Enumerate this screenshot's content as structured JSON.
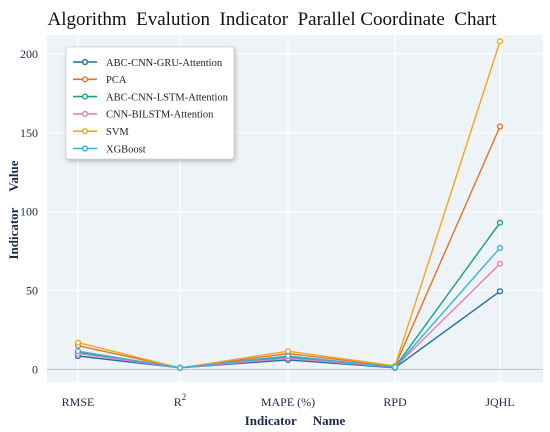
{
  "chart_data": {
    "type": "line",
    "title": "Algorithm  Evalution  Indicator  Parallel Coordinate  Chart",
    "xlabel": "Indicator     Name",
    "ylabel": "Indicator     Value",
    "categories": [
      "RMSE",
      "R",
      "MAPE (%)",
      "RPD",
      "JQHL"
    ],
    "category_superscripts": [
      "",
      "2",
      "",
      "",
      ""
    ],
    "yticks": [
      0,
      50,
      100,
      150,
      200
    ],
    "ylim": [
      -8,
      212
    ],
    "grid": true,
    "legend_position": "top-left",
    "background": "#eef3f7",
    "series": [
      {
        "name": "ABC-CNN-GRU-Attention",
        "color": "#1f6fa3",
        "values": [
          8.5,
          0.99,
          6.0,
          1.0,
          49.5
        ]
      },
      {
        "name": "PCA",
        "color": "#e0742a",
        "values": [
          15.0,
          0.96,
          10.0,
          2.0,
          154.0
        ]
      },
      {
        "name": "ABC-CNN-LSTM-Attention",
        "color": "#13a085",
        "values": [
          11.0,
          0.98,
          8.0,
          1.5,
          93.0
        ]
      },
      {
        "name": "CNN-BILSTM-Attention",
        "color": "#e87fb4",
        "values": [
          10.0,
          0.985,
          7.0,
          1.3,
          67.0
        ]
      },
      {
        "name": "SVM",
        "color": "#f2a61f",
        "values": [
          17.0,
          0.95,
          11.5,
          2.2,
          208.0
        ]
      },
      {
        "name": "XGBoost",
        "color": "#35b2d8",
        "values": [
          11.5,
          0.975,
          8.5,
          1.4,
          77.0
        ]
      }
    ]
  }
}
